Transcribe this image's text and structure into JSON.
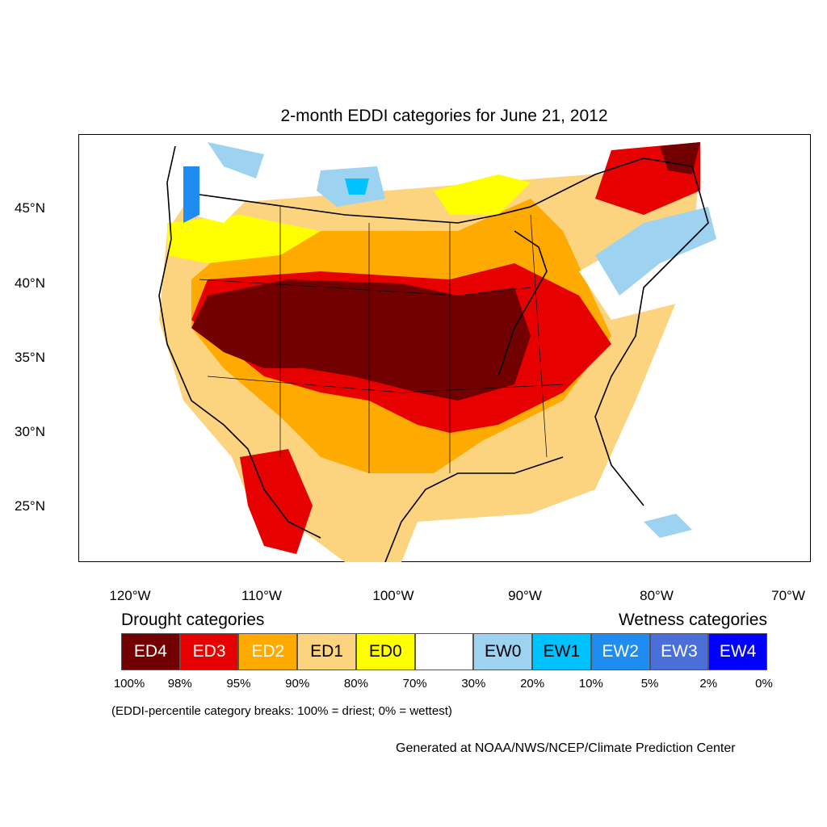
{
  "title": "2-month EDDI categories for June 21, 2012",
  "lat_labels": [
    "45°N",
    "40°N",
    "35°N",
    "30°N",
    "25°N"
  ],
  "lon_labels": [
    "120°W",
    "110°W",
    "100°W",
    "90°W",
    "80°W",
    "70°W"
  ],
  "legend": {
    "drought_heading": "Drought categories",
    "wetness_heading": "Wetness categories",
    "categories": [
      {
        "label": "ED4",
        "color": "#730000",
        "text_color": "#ffffff"
      },
      {
        "label": "ED3",
        "color": "#e60000",
        "text_color": "#ffffff"
      },
      {
        "label": "ED2",
        "color": "#ffaa00",
        "text_color": "#ffffff"
      },
      {
        "label": "ED1",
        "color": "#fcd37f",
        "text_color": "#000000"
      },
      {
        "label": "ED0",
        "color": "#ffff00",
        "text_color": "#000000"
      },
      {
        "label": "",
        "color": "#ffffff",
        "text_color": "#000000"
      },
      {
        "label": "EW0",
        "color": "#9dd2f0",
        "text_color": "#000000"
      },
      {
        "label": "EW1",
        "color": "#00c2ff",
        "text_color": "#000000"
      },
      {
        "label": "EW2",
        "color": "#1e8cf0",
        "text_color": "#ffffff"
      },
      {
        "label": "EW3",
        "color": "#4a6fd9",
        "text_color": "#ffffff"
      },
      {
        "label": "EW4",
        "color": "#0000ff",
        "text_color": "#ffffff"
      }
    ],
    "breaks": [
      "100%",
      "98%",
      "95%",
      "90%",
      "80%",
      "70%",
      "30%",
      "20%",
      "10%",
      "5%",
      "2%",
      "0%"
    ]
  },
  "footnote": "(EDDI-percentile category breaks: 100% = driest; 0% = wettest)",
  "credit": "Generated at NOAA/NWS/NCEP/Climate Prediction Center"
}
